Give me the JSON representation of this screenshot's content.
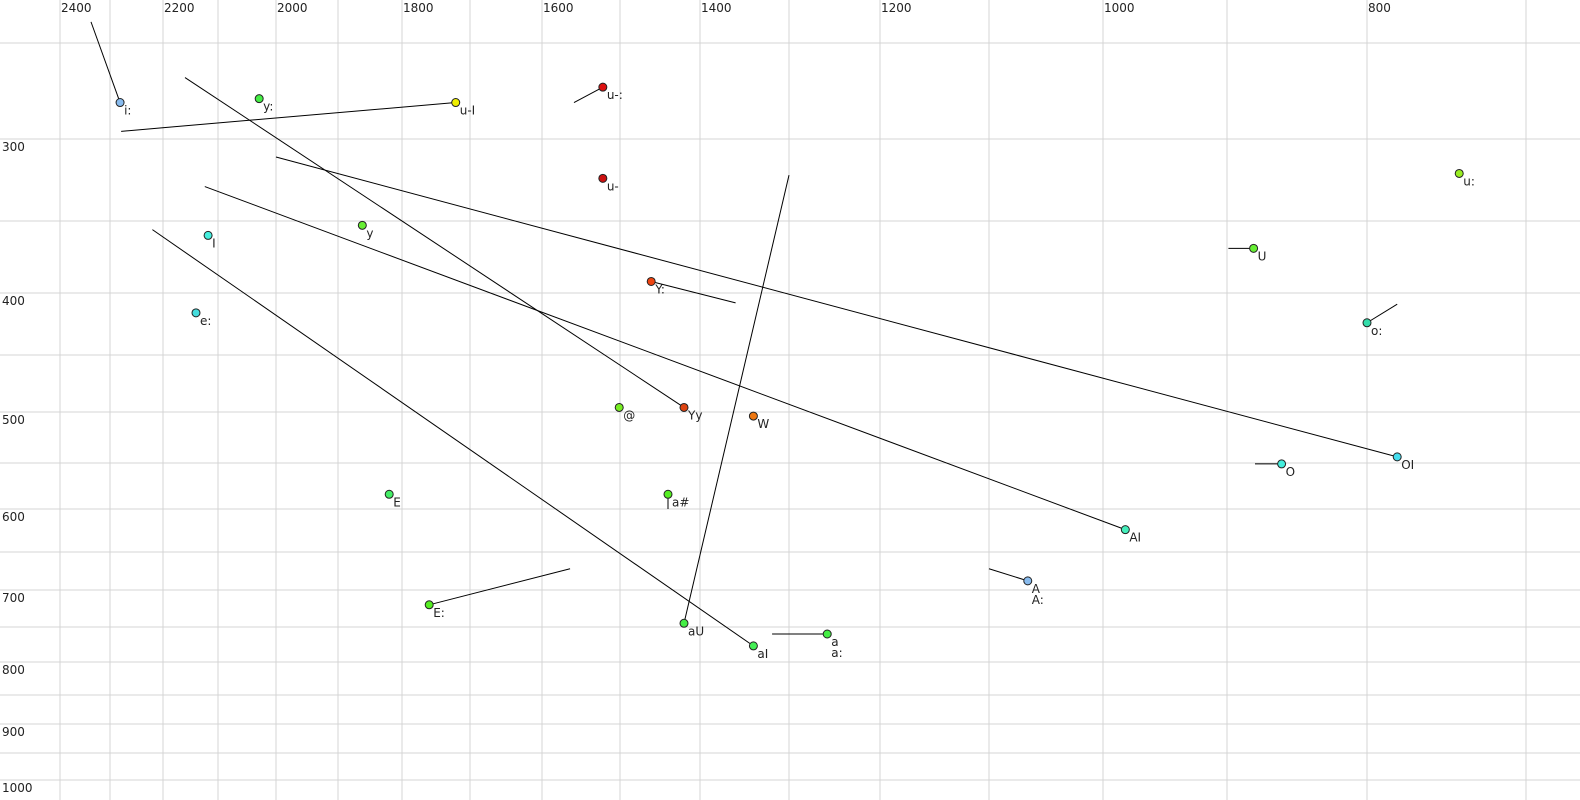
{
  "chart_data": {
    "type": "scatter",
    "title": "",
    "xlabel": "",
    "ylabel": "",
    "x_reversed": true,
    "y_reversed": true,
    "x_scale": "nonlinear (perceptual)",
    "y_scale": "nonlinear (perceptual)",
    "grid": true,
    "xlim": [
      2450,
      650
    ],
    "ylim": [
      230,
      1020
    ],
    "x_ticks": [
      2400,
      2200,
      2000,
      1800,
      1600,
      1400,
      1200,
      1000,
      800
    ],
    "x_tick_labels": [
      "2400",
      "2200",
      "2000",
      "1800",
      "1600",
      "1400",
      "1200",
      "1000",
      "800"
    ],
    "y_ticks": [
      300,
      400,
      500,
      600,
      700,
      800,
      900,
      1000
    ],
    "y_tick_labels": [
      "300",
      "400",
      "500",
      "600",
      "700",
      "800",
      "900",
      "1000"
    ],
    "points": [
      {
        "label": "i:",
        "f2": 2281,
        "f1": 281,
        "color": "#88bbee",
        "to": [
          2338,
          239
        ]
      },
      {
        "label": "y:",
        "f2": 2029,
        "f1": 279,
        "color": "#44ee44"
      },
      {
        "label": "u-I",
        "f2": 1721,
        "f1": 281,
        "color": "#eeee00",
        "to": [
          2279,
          296
        ]
      },
      {
        "label": "u-:",
        "f2": 1522,
        "f1": 273,
        "color": "#dd1111",
        "to": [
          1559,
          281
        ]
      },
      {
        "label": "u-",
        "f2": 1522,
        "f1": 324,
        "color": "#cc1111"
      },
      {
        "label": "u:",
        "f2": 742,
        "f1": 321,
        "color": "#99ee22"
      },
      {
        "label": "I",
        "f2": 2118,
        "f1": 360,
        "color": "#44eedd"
      },
      {
        "label": "y",
        "f2": 1862,
        "f1": 353,
        "color": "#66ee33"
      },
      {
        "label": "U",
        "f2": 881,
        "f1": 369,
        "color": "#66ee33",
        "to": [
          899,
          369
        ]
      },
      {
        "label": "Y:",
        "f2": 1461,
        "f1": 392,
        "color": "#ee4411",
        "to": [
          1360,
          408
        ]
      },
      {
        "label": "e:",
        "f2": 2140,
        "f1": 416,
        "color": "#44dddd"
      },
      {
        "label": "o:",
        "f2": 800,
        "f1": 424,
        "color": "#33ddaa",
        "to": [
          781,
          409
        ]
      },
      {
        "label": "@",
        "f2": 1501,
        "f1": 496,
        "color": "#77ee22"
      },
      {
        "label": "Yy",
        "f2": 1420,
        "f1": 496,
        "color": "#dd4411",
        "to": [
          2160,
          268
        ]
      },
      {
        "label": "W",
        "f2": 1340,
        "f1": 504,
        "color": "#ee7711"
      },
      {
        "label": "OI",
        "f2": 781,
        "f1": 544,
        "color": "#44ddee",
        "to": [
          2000,
          311
        ]
      },
      {
        "label": "O",
        "f2": 861,
        "f1": 551,
        "color": "#44eedd",
        "to": [
          880,
          551
        ]
      },
      {
        "label": "E",
        "f2": 1820,
        "f1": 584,
        "color": "#44ee66"
      },
      {
        "label": "a#",
        "f2": 1440,
        "f1": 584,
        "color": "#55ee22",
        "to": [
          1440,
          600
        ]
      },
      {
        "label": "AI",
        "f2": 982,
        "f1": 624,
        "color": "#44eebb",
        "to": [
          2124,
          329
        ]
      },
      {
        "label": "A",
        "label2": "A:",
        "f2": 1066,
        "f1": 688,
        "color": "#88bbee",
        "to": [
          1100,
          672
        ]
      },
      {
        "label": "E:",
        "f2": 1760,
        "f1": 720,
        "color": "#55ee22",
        "to": [
          1564,
          672
        ]
      },
      {
        "label": "aU",
        "f2": 1420,
        "f1": 745,
        "color": "#44ee44",
        "to": [
          1300,
          322
        ]
      },
      {
        "label": "aI",
        "f2": 1340,
        "f1": 777,
        "color": "#44ee55",
        "to": [
          2220,
          356
        ]
      },
      {
        "label": "a",
        "label2": "a:",
        "f2": 1258,
        "f1": 760,
        "color": "#44ee44",
        "to": [
          1319,
          760
        ]
      }
    ]
  }
}
